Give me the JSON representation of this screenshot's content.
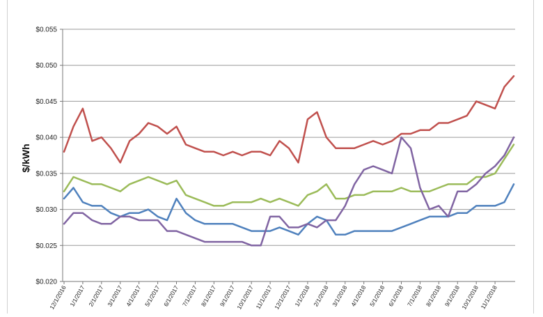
{
  "chart_data": {
    "type": "line",
    "title": "",
    "xlabel": "",
    "ylabel": "$/kWh",
    "ylim": [
      0.02,
      0.055
    ],
    "grid": true,
    "legend": "none",
    "ytick_labels": [
      "$0.020",
      "$0.025",
      "$0.030",
      "$0.035",
      "$0.040",
      "$0.045",
      "$0.050",
      "$0.055"
    ],
    "ytick_values": [
      0.02,
      0.025,
      0.03,
      0.035,
      0.04,
      0.045,
      0.05,
      0.055
    ],
    "xtick_labels": [
      "12/1/2016",
      "1/1/2017",
      "2/1/2017",
      "3/1/2017",
      "4/1/2017",
      "5/1/2017",
      "6/1/2017",
      "7/1/2017",
      "8/1/2017",
      "9/1/2017",
      "10/1/2017",
      "11/1/2017",
      "12/1/2017",
      "1/1/2018",
      "2/1/2018",
      "3/1/2018",
      "4/1/2018",
      "5/1/2018",
      "6/1/2018",
      "7/1/2018",
      "8/1/2018",
      "9/1/2018",
      "10/1/2018",
      "11/1/2018"
    ],
    "x": [
      "12/1/2016",
      "12/15/2016",
      "1/1/2017",
      "1/15/2017",
      "2/1/2017",
      "2/15/2017",
      "3/1/2017",
      "3/15/2017",
      "4/1/2017",
      "4/15/2017",
      "5/1/2017",
      "5/15/2017",
      "6/1/2017",
      "6/15/2017",
      "7/1/2017",
      "7/15/2017",
      "8/1/2017",
      "8/15/2017",
      "9/1/2017",
      "9/15/2017",
      "10/1/2017",
      "10/15/2017",
      "11/1/2017",
      "11/15/2017",
      "12/1/2017",
      "12/15/2017",
      "1/1/2018",
      "1/15/2018",
      "2/1/2018",
      "2/15/2018",
      "3/1/2018",
      "3/15/2018",
      "4/1/2018",
      "4/15/2018",
      "5/1/2018",
      "5/15/2018",
      "6/1/2018",
      "6/15/2018",
      "7/1/2018",
      "7/15/2018",
      "8/1/2018",
      "8/15/2018",
      "9/1/2018",
      "9/15/2018",
      "10/1/2018",
      "10/15/2018",
      "11/1/2018",
      "11/15/2018",
      "12/1/2018"
    ],
    "series": [
      {
        "color": "#c0504d",
        "values": [
          0.038,
          0.0415,
          0.044,
          0.0395,
          0.04,
          0.0385,
          0.0365,
          0.0395,
          0.0405,
          0.042,
          0.0415,
          0.0405,
          0.0415,
          0.039,
          0.0385,
          0.038,
          0.038,
          0.0375,
          0.038,
          0.0375,
          0.038,
          0.038,
          0.0375,
          0.0395,
          0.0385,
          0.0365,
          0.0425,
          0.0435,
          0.04,
          0.0385,
          0.0385,
          0.0385,
          0.039,
          0.0395,
          0.039,
          0.0395,
          0.0405,
          0.0405,
          0.041,
          0.041,
          0.042,
          0.042,
          0.0425,
          0.043,
          0.045,
          0.0445,
          0.044,
          0.047,
          0.0485
        ]
      },
      {
        "color": "#9bbb59",
        "values": [
          0.0325,
          0.0345,
          0.034,
          0.0335,
          0.0335,
          0.033,
          0.0325,
          0.0335,
          0.034,
          0.0345,
          0.034,
          0.0335,
          0.034,
          0.032,
          0.0315,
          0.031,
          0.0305,
          0.0305,
          0.031,
          0.031,
          0.031,
          0.0315,
          0.031,
          0.0315,
          0.031,
          0.0305,
          0.032,
          0.0325,
          0.0335,
          0.0315,
          0.0315,
          0.032,
          0.032,
          0.0325,
          0.0325,
          0.0325,
          0.033,
          0.0325,
          0.0325,
          0.0325,
          0.033,
          0.0335,
          0.0335,
          0.0335,
          0.0345,
          0.0345,
          0.035,
          0.037,
          0.039
        ]
      },
      {
        "color": "#4f81bd",
        "values": [
          0.0315,
          0.033,
          0.031,
          0.0305,
          0.0305,
          0.0295,
          0.029,
          0.0295,
          0.0295,
          0.03,
          0.029,
          0.0285,
          0.0315,
          0.0295,
          0.0285,
          0.028,
          0.028,
          0.028,
          0.028,
          0.0275,
          0.027,
          0.027,
          0.027,
          0.0275,
          0.027,
          0.0265,
          0.028,
          0.029,
          0.0285,
          0.0265,
          0.0265,
          0.027,
          0.027,
          0.027,
          0.027,
          0.027,
          0.0275,
          0.028,
          0.0285,
          0.029,
          0.029,
          0.029,
          0.0295,
          0.0295,
          0.0305,
          0.0305,
          0.0305,
          0.031,
          0.0335
        ]
      },
      {
        "color": "#8064a2",
        "values": [
          0.028,
          0.0295,
          0.0295,
          0.0285,
          0.028,
          0.028,
          0.029,
          0.029,
          0.0285,
          0.0285,
          0.0285,
          0.027,
          0.027,
          0.0265,
          0.026,
          0.0255,
          0.0255,
          0.0255,
          0.0255,
          0.0255,
          0.025,
          0.025,
          0.029,
          0.029,
          0.0275,
          0.0275,
          0.028,
          0.0275,
          0.0285,
          0.0285,
          0.0305,
          0.0335,
          0.0355,
          0.036,
          0.0355,
          0.035,
          0.04,
          0.0385,
          0.033,
          0.03,
          0.0305,
          0.029,
          0.0325,
          0.0325,
          0.0335,
          0.035,
          0.036,
          0.0375,
          0.04
        ]
      }
    ]
  }
}
